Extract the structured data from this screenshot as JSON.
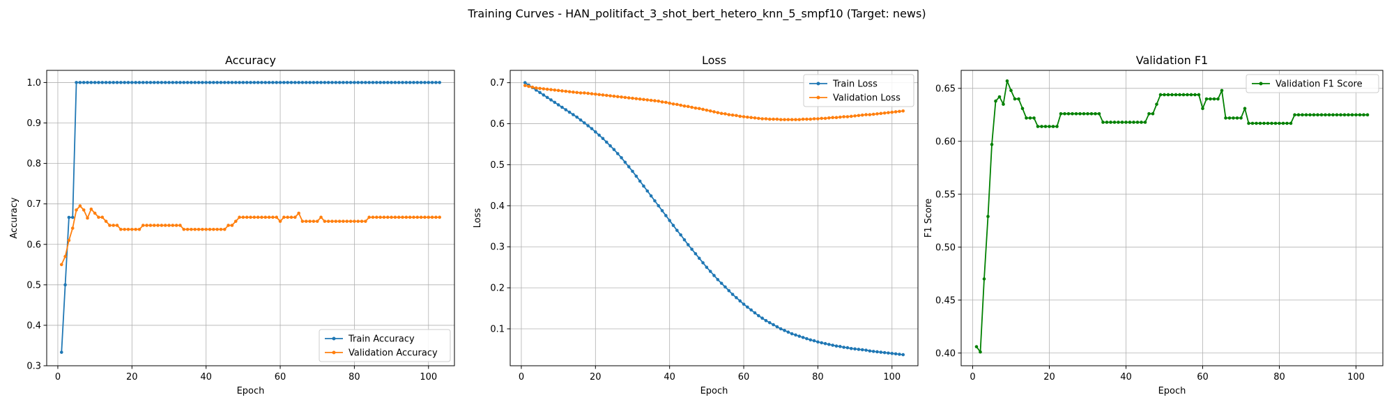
{
  "suptitle": "Training Curves - HAN_politifact_3_shot_bert_hetero_knn_5_smpf10 (Target: news)",
  "chart_data": [
    {
      "type": "line",
      "title": "Accuracy",
      "xlabel": "Epoch",
      "ylabel": "Accuracy",
      "xlim": [
        -3,
        107
      ],
      "ylim": [
        0.3,
        1.03
      ],
      "xticks": [
        0,
        20,
        40,
        60,
        80,
        100
      ],
      "yticks": [
        0.3,
        0.4,
        0.5,
        0.6,
        0.7,
        0.8,
        0.9,
        1.0
      ],
      "tick_decimals": 1,
      "grid": true,
      "legend": "lower right",
      "series": [
        {
          "name": "Train Accuracy",
          "color": "#1f77b4",
          "values": [
            0.3333,
            0.5,
            0.6667,
            0.6667,
            1.0,
            1.0,
            1.0,
            1.0,
            1.0,
            1.0,
            1.0,
            1.0,
            1.0,
            1.0,
            1.0,
            1.0,
            1.0,
            1.0,
            1.0,
            1.0,
            1.0,
            1.0,
            1.0,
            1.0,
            1.0,
            1.0,
            1.0,
            1.0,
            1.0,
            1.0,
            1.0,
            1.0,
            1.0,
            1.0,
            1.0,
            1.0,
            1.0,
            1.0,
            1.0,
            1.0,
            1.0,
            1.0,
            1.0,
            1.0,
            1.0,
            1.0,
            1.0,
            1.0,
            1.0,
            1.0,
            1.0,
            1.0,
            1.0,
            1.0,
            1.0,
            1.0,
            1.0,
            1.0,
            1.0,
            1.0,
            1.0,
            1.0,
            1.0,
            1.0,
            1.0,
            1.0,
            1.0,
            1.0,
            1.0,
            1.0,
            1.0,
            1.0,
            1.0,
            1.0,
            1.0,
            1.0,
            1.0,
            1.0,
            1.0,
            1.0,
            1.0,
            1.0,
            1.0,
            1.0,
            1.0,
            1.0,
            1.0,
            1.0,
            1.0,
            1.0,
            1.0,
            1.0,
            1.0,
            1.0,
            1.0,
            1.0,
            1.0,
            1.0,
            1.0,
            1.0,
            1.0,
            1.0,
            1.0
          ]
        },
        {
          "name": "Validation Accuracy",
          "color": "#ff7f0e",
          "values": [
            0.55,
            0.57,
            0.61,
            0.64,
            0.685,
            0.695,
            0.685,
            0.665,
            0.687,
            0.677,
            0.667,
            0.667,
            0.657,
            0.647,
            0.647,
            0.647,
            0.637,
            0.637,
            0.637,
            0.637,
            0.637,
            0.637,
            0.647,
            0.647,
            0.647,
            0.647,
            0.647,
            0.647,
            0.647,
            0.647,
            0.647,
            0.647,
            0.647,
            0.637,
            0.637,
            0.637,
            0.637,
            0.637,
            0.637,
            0.637,
            0.637,
            0.637,
            0.637,
            0.637,
            0.637,
            0.647,
            0.647,
            0.657,
            0.667,
            0.667,
            0.667,
            0.667,
            0.667,
            0.667,
            0.667,
            0.667,
            0.667,
            0.667,
            0.667,
            0.657,
            0.667,
            0.667,
            0.667,
            0.667,
            0.677,
            0.657,
            0.657,
            0.657,
            0.657,
            0.657,
            0.667,
            0.657,
            0.657,
            0.657,
            0.657,
            0.657,
            0.657,
            0.657,
            0.657,
            0.657,
            0.657,
            0.657,
            0.657,
            0.667,
            0.667,
            0.667,
            0.667,
            0.667,
            0.667,
            0.667,
            0.667,
            0.667,
            0.667,
            0.667,
            0.667,
            0.667,
            0.667,
            0.667,
            0.667,
            0.667,
            0.667,
            0.667,
            0.667
          ]
        }
      ]
    },
    {
      "type": "line",
      "title": "Loss",
      "xlabel": "Epoch",
      "ylabel": "Loss",
      "xlim": [
        -3,
        107
      ],
      "ylim": [
        0.01,
        0.73
      ],
      "xticks": [
        0,
        20,
        40,
        60,
        80,
        100
      ],
      "yticks": [
        0.1,
        0.2,
        0.3,
        0.4,
        0.5,
        0.6,
        0.7
      ],
      "tick_decimals": 1,
      "grid": true,
      "legend": "upper right",
      "series": [
        {
          "name": "Train Loss",
          "color": "#1f77b4",
          "values": [
            0.7,
            0.694,
            0.688,
            0.682,
            0.676,
            0.67,
            0.664,
            0.658,
            0.652,
            0.646,
            0.64,
            0.634,
            0.628,
            0.622,
            0.616,
            0.609,
            0.602,
            0.595,
            0.588,
            0.58,
            0.572,
            0.564,
            0.555,
            0.546,
            0.537,
            0.527,
            0.517,
            0.506,
            0.495,
            0.484,
            0.472,
            0.46,
            0.448,
            0.436,
            0.424,
            0.412,
            0.4,
            0.388,
            0.376,
            0.364,
            0.352,
            0.34,
            0.329,
            0.317,
            0.305,
            0.294,
            0.283,
            0.272,
            0.261,
            0.25,
            0.24,
            0.23,
            0.22,
            0.211,
            0.202,
            0.193,
            0.184,
            0.176,
            0.168,
            0.16,
            0.153,
            0.146,
            0.139,
            0.132,
            0.126,
            0.12,
            0.115,
            0.11,
            0.105,
            0.1,
            0.096,
            0.092,
            0.088,
            0.085,
            0.082,
            0.079,
            0.076,
            0.073,
            0.071,
            0.068,
            0.066,
            0.064,
            0.062,
            0.06,
            0.058,
            0.057,
            0.055,
            0.054,
            0.052,
            0.051,
            0.05,
            0.049,
            0.048,
            0.046,
            0.045,
            0.044,
            0.043,
            0.042,
            0.041,
            0.04,
            0.039,
            0.038,
            0.037
          ]
        },
        {
          "name": "Validation Loss",
          "color": "#ff7f0e",
          "values": [
            0.693,
            0.691,
            0.689,
            0.687,
            0.686,
            0.685,
            0.684,
            0.683,
            0.682,
            0.681,
            0.68,
            0.679,
            0.678,
            0.677,
            0.676,
            0.675,
            0.675,
            0.674,
            0.673,
            0.672,
            0.671,
            0.67,
            0.669,
            0.668,
            0.667,
            0.666,
            0.665,
            0.664,
            0.663,
            0.662,
            0.661,
            0.66,
            0.659,
            0.658,
            0.657,
            0.656,
            0.655,
            0.653,
            0.652,
            0.65,
            0.648,
            0.647,
            0.645,
            0.643,
            0.642,
            0.64,
            0.638,
            0.637,
            0.635,
            0.633,
            0.631,
            0.629,
            0.627,
            0.625,
            0.624,
            0.622,
            0.621,
            0.62,
            0.618,
            0.617,
            0.616,
            0.615,
            0.614,
            0.613,
            0.612,
            0.612,
            0.611,
            0.611,
            0.611,
            0.61,
            0.61,
            0.61,
            0.61,
            0.61,
            0.61,
            0.611,
            0.611,
            0.611,
            0.612,
            0.612,
            0.613,
            0.613,
            0.614,
            0.615,
            0.615,
            0.616,
            0.617,
            0.617,
            0.618,
            0.619,
            0.62,
            0.621,
            0.622,
            0.622,
            0.623,
            0.624,
            0.625,
            0.626,
            0.627,
            0.628,
            0.629,
            0.63,
            0.631
          ]
        }
      ]
    },
    {
      "type": "line",
      "title": "Validation F1",
      "xlabel": "Epoch",
      "ylabel": "F1 Score",
      "xlim": [
        -3,
        107
      ],
      "ylim": [
        0.388,
        0.667
      ],
      "xticks": [
        0,
        20,
        40,
        60,
        80,
        100
      ],
      "yticks": [
        0.4,
        0.45,
        0.5,
        0.55,
        0.6,
        0.65
      ],
      "tick_decimals": 2,
      "grid": true,
      "legend": "upper right",
      "series": [
        {
          "name": "Validation F1 Score",
          "color": "#008000",
          "values": [
            0.406,
            0.401,
            0.47,
            0.529,
            0.597,
            0.638,
            0.642,
            0.635,
            0.657,
            0.648,
            0.64,
            0.64,
            0.631,
            0.622,
            0.622,
            0.622,
            0.614,
            0.614,
            0.614,
            0.614,
            0.614,
            0.614,
            0.626,
            0.626,
            0.626,
            0.626,
            0.626,
            0.626,
            0.626,
            0.626,
            0.626,
            0.626,
            0.626,
            0.618,
            0.618,
            0.618,
            0.618,
            0.618,
            0.618,
            0.618,
            0.618,
            0.618,
            0.618,
            0.618,
            0.618,
            0.626,
            0.626,
            0.635,
            0.644,
            0.644,
            0.644,
            0.644,
            0.644,
            0.644,
            0.644,
            0.644,
            0.644,
            0.644,
            0.644,
            0.631,
            0.64,
            0.64,
            0.64,
            0.64,
            0.648,
            0.622,
            0.622,
            0.622,
            0.622,
            0.622,
            0.631,
            0.617,
            0.617,
            0.617,
            0.617,
            0.617,
            0.617,
            0.617,
            0.617,
            0.617,
            0.617,
            0.617,
            0.617,
            0.625,
            0.625,
            0.625,
            0.625,
            0.625,
            0.625,
            0.625,
            0.625,
            0.625,
            0.625,
            0.625,
            0.625,
            0.625,
            0.625,
            0.625,
            0.625,
            0.625,
            0.625,
            0.625,
            0.625
          ]
        }
      ]
    }
  ]
}
